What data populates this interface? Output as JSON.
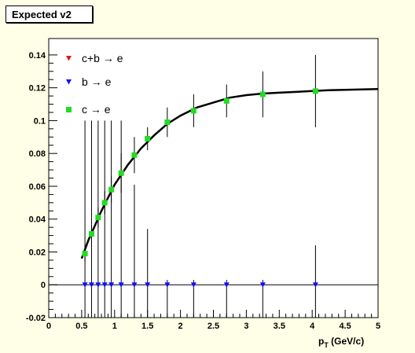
{
  "chart_data": {
    "type": "scatter",
    "title": "Expected v2",
    "xlabel": "p_T (GeV/c)",
    "xlabel_main": "p",
    "xlabel_sub": "T",
    "xlabel_unit": " (GeV/c)",
    "xlim": [
      0,
      5
    ],
    "ylim": [
      -0.02,
      0.15
    ],
    "x_ticks": [
      "0",
      "0.5",
      "1",
      "1.5",
      "2",
      "2.5",
      "3",
      "3.5",
      "4",
      "4.5",
      "5"
    ],
    "x_tick_values": [
      0,
      0.5,
      1,
      1.5,
      2,
      2.5,
      3,
      3.5,
      4,
      4.5,
      5
    ],
    "y_ticks": [
      "-0.02",
      "0",
      "0.02",
      "0.04",
      "0.06",
      "0.08",
      "0.1",
      "0.12",
      "0.14"
    ],
    "y_tick_values": [
      -0.02,
      0,
      0.02,
      0.04,
      0.06,
      0.08,
      0.1,
      0.12,
      0.14
    ],
    "legend_position": "top-left",
    "series": [
      {
        "name": "c+b → e",
        "marker": "triangle-down",
        "color": "#d81b1b",
        "x": [],
        "y": []
      },
      {
        "name": "b → e",
        "marker": "triangle-down",
        "color": "#1010ff",
        "x": [
          0.55,
          0.65,
          0.75,
          0.85,
          0.95,
          1.1,
          1.3,
          1.5,
          1.8,
          2.2,
          2.7,
          3.25,
          4.05
        ],
        "y": [
          0,
          0,
          0,
          0,
          0,
          0,
          0,
          0,
          0,
          0,
          0,
          0,
          0
        ],
        "err_low": [
          0.12,
          0.12,
          0.12,
          0.12,
          0.12,
          0.12,
          0.12,
          0.12,
          0.12,
          0.12,
          0.12,
          0.12,
          0.12
        ],
        "err_high": [
          0.1,
          0.1,
          0.1,
          0.1,
          0.1,
          0.1,
          0.061,
          0.034,
          0.003,
          0.003,
          0.003,
          0.003,
          0.024
        ]
      },
      {
        "name": "c → e",
        "marker": "square",
        "color": "#22dd22",
        "x": [
          0.55,
          0.65,
          0.75,
          0.85,
          0.95,
          1.1,
          1.3,
          1.5,
          1.8,
          2.2,
          2.7,
          3.25,
          4.05
        ],
        "y": [
          0.019,
          0.031,
          0.041,
          0.05,
          0.058,
          0.068,
          0.079,
          0.089,
          0.099,
          0.106,
          0.112,
          0.116,
          0.118
        ],
        "err": [
          0.005,
          0.005,
          0.006,
          0.007,
          0.008,
          0.012,
          0.011,
          0.007,
          0.009,
          0.01,
          0.01,
          0.014,
          0.022
        ]
      }
    ],
    "fit_curve": {
      "color": "#000000",
      "x": [
        0.5,
        0.6,
        0.7,
        0.8,
        0.9,
        1.0,
        1.2,
        1.4,
        1.6,
        1.8,
        2.0,
        2.25,
        2.5,
        2.75,
        3.0,
        3.25,
        3.5,
        3.75,
        4.0,
        4.25,
        4.5,
        4.75,
        5.0
      ],
      "y": [
        0.016,
        0.027,
        0.036,
        0.045,
        0.053,
        0.061,
        0.073,
        0.083,
        0.091,
        0.098,
        0.103,
        0.108,
        0.111,
        0.114,
        0.1155,
        0.1165,
        0.117,
        0.1175,
        0.118,
        0.1185,
        0.1188,
        0.119,
        0.1192
      ]
    }
  }
}
